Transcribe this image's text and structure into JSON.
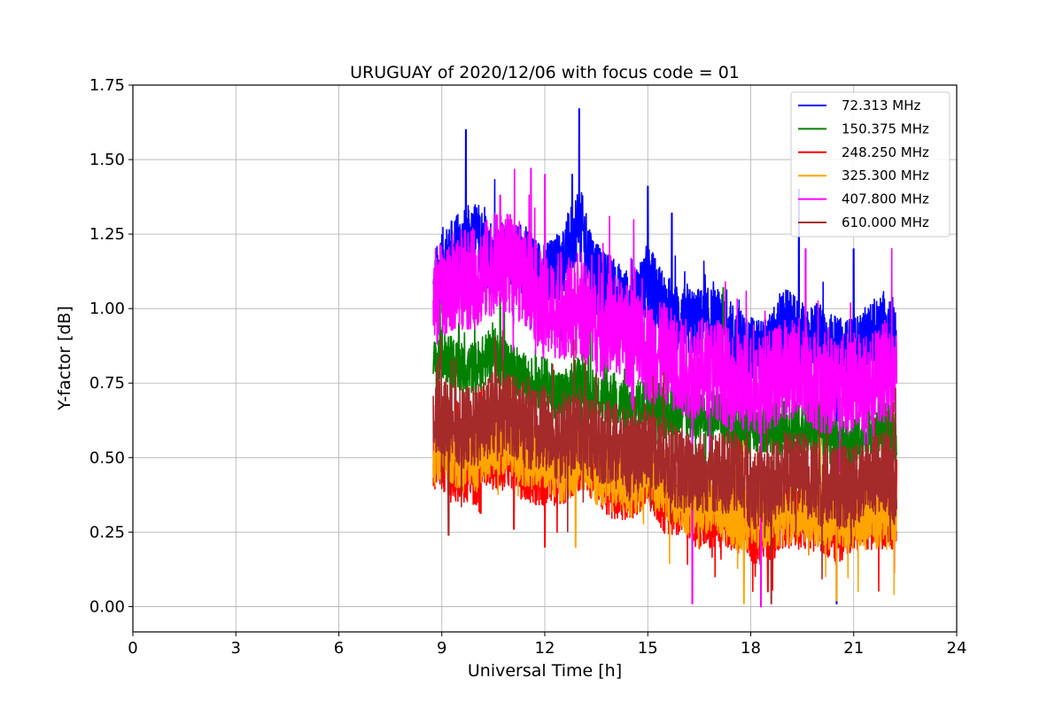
{
  "chart_data": {
    "type": "line",
    "title": "URUGUAY of 2020/12/06 with focus code = 01",
    "xlabel": "Universal Time [h]",
    "ylabel": "Y-factor [dB]",
    "xlim": [
      0,
      24
    ],
    "ylim": [
      -0.085,
      1.75
    ],
    "xticks": [
      0,
      3,
      6,
      9,
      12,
      15,
      18,
      21,
      24
    ],
    "yticks": [
      0.0,
      0.25,
      0.5,
      0.75,
      1.0,
      1.25,
      1.5,
      1.75
    ],
    "ytick_labels": [
      "0.00",
      "0.25",
      "0.50",
      "0.75",
      "1.00",
      "1.25",
      "1.50",
      "1.75"
    ],
    "grid": true,
    "legend_position": "top-right",
    "x_range": [
      8.75,
      22.25
    ],
    "series": [
      {
        "name": " 72.313 MHz",
        "color": "#0000ff",
        "x": [
          8.75,
          9.0,
          9.5,
          10.0,
          10.5,
          11.0,
          11.5,
          12.0,
          12.5,
          13.0,
          13.5,
          14.0,
          14.5,
          15.0,
          15.5,
          16.0,
          16.5,
          17.0,
          17.5,
          18.0,
          18.5,
          19.0,
          19.5,
          20.0,
          20.5,
          21.0,
          21.5,
          22.0,
          22.25
        ],
        "values": [
          1.05,
          1.15,
          1.2,
          1.25,
          1.15,
          1.2,
          1.15,
          1.1,
          1.15,
          1.3,
          1.1,
          1.05,
          1.0,
          1.1,
          1.0,
          0.95,
          0.95,
          0.95,
          0.9,
          0.85,
          0.85,
          0.95,
          0.9,
          0.9,
          0.85,
          0.85,
          0.9,
          0.95,
          0.9
        ],
        "peaks": [
          [
            9.7,
            1.6
          ],
          [
            13.0,
            1.67
          ],
          [
            12.8,
            1.45
          ],
          [
            15.0,
            1.41
          ],
          [
            15.7,
            1.32
          ],
          [
            19.4,
            1.4
          ],
          [
            21.0,
            1.2
          ],
          [
            20.5,
            0.01
          ]
        ]
      },
      {
        "name": "150.375 MHz",
        "color": "#008000",
        "x": [
          8.75,
          9.0,
          9.5,
          10.0,
          10.5,
          11.0,
          11.5,
          12.0,
          12.5,
          13.0,
          13.5,
          14.0,
          14.5,
          15.0,
          15.5,
          16.0,
          16.5,
          17.0,
          17.5,
          18.0,
          18.5,
          19.0,
          19.5,
          20.0,
          20.5,
          21.0,
          21.5,
          22.0,
          22.25
        ],
        "values": [
          0.8,
          0.85,
          0.8,
          0.8,
          0.85,
          0.8,
          0.75,
          0.75,
          0.7,
          0.75,
          0.7,
          0.7,
          0.65,
          0.7,
          0.65,
          0.65,
          0.65,
          0.65,
          0.6,
          0.6,
          0.6,
          0.6,
          0.6,
          0.6,
          0.55,
          0.55,
          0.6,
          0.6,
          0.55
        ],
        "peaks": [
          [
            10.7,
            1.05
          ],
          [
            17.2,
            1.07
          ],
          [
            9.5,
            0.95
          ]
        ]
      },
      {
        "name": "248.250 MHz",
        "color": "#ff0000",
        "x": [
          8.75,
          9.0,
          9.5,
          10.0,
          10.5,
          11.0,
          11.5,
          12.0,
          12.5,
          13.0,
          13.5,
          14.0,
          14.5,
          15.0,
          15.5,
          16.0,
          16.5,
          17.0,
          17.5,
          18.0,
          18.5,
          19.0,
          19.5,
          20.0,
          20.5,
          21.0,
          21.5,
          22.0,
          22.25
        ],
        "values": [
          0.5,
          0.5,
          0.45,
          0.45,
          0.5,
          0.5,
          0.45,
          0.45,
          0.45,
          0.5,
          0.45,
          0.4,
          0.4,
          0.45,
          0.35,
          0.35,
          0.3,
          0.3,
          0.3,
          0.25,
          0.25,
          0.3,
          0.3,
          0.3,
          0.25,
          0.3,
          0.3,
          0.3,
          0.3
        ],
        "peaks": [
          [
            9.2,
            0.24
          ],
          [
            11.1,
            0.26
          ],
          [
            12.0,
            0.2
          ],
          [
            18.5,
            0.05
          ]
        ]
      },
      {
        "name": "325.300 MHz",
        "color": "#ffa500",
        "x": [
          8.75,
          9.0,
          9.5,
          10.0,
          10.5,
          11.0,
          11.5,
          12.0,
          12.5,
          13.0,
          13.5,
          14.0,
          14.5,
          15.0,
          15.5,
          16.0,
          16.5,
          17.0,
          17.5,
          18.0,
          18.5,
          19.0,
          19.5,
          20.0,
          20.5,
          21.0,
          21.5,
          22.0,
          22.25
        ],
        "values": [
          0.5,
          0.55,
          0.5,
          0.5,
          0.55,
          0.55,
          0.5,
          0.5,
          0.45,
          0.5,
          0.45,
          0.45,
          0.4,
          0.45,
          0.4,
          0.35,
          0.35,
          0.35,
          0.3,
          0.3,
          0.3,
          0.3,
          0.35,
          0.3,
          0.3,
          0.3,
          0.3,
          0.3,
          0.3
        ],
        "peaks": [
          [
            12.9,
            0.2
          ],
          [
            17.8,
            0.01
          ],
          [
            20.5,
            0.02
          ]
        ]
      },
      {
        "name": "407.800 MHz",
        "color": "#ff00ff",
        "x": [
          8.75,
          9.0,
          9.5,
          10.0,
          10.5,
          11.0,
          11.5,
          12.0,
          12.5,
          13.0,
          13.5,
          14.0,
          14.5,
          15.0,
          15.5,
          16.0,
          16.5,
          17.0,
          17.5,
          18.0,
          18.5,
          19.0,
          19.5,
          20.0,
          20.5,
          21.0,
          21.5,
          22.0,
          22.25
        ],
        "values": [
          1.05,
          1.05,
          1.1,
          1.1,
          1.15,
          1.15,
          1.1,
          1.0,
          1.0,
          1.0,
          0.95,
          0.95,
          0.9,
          0.85,
          0.85,
          0.8,
          0.8,
          0.8,
          0.75,
          0.75,
          0.75,
          0.8,
          0.8,
          0.75,
          0.75,
          0.75,
          0.75,
          0.8,
          0.75
        ],
        "peaks": [
          [
            11.6,
            1.47
          ],
          [
            12.0,
            1.45
          ],
          [
            10.7,
            1.38
          ],
          [
            16.3,
            0.01
          ],
          [
            18.3,
            0.0
          ],
          [
            19.6,
            1.2
          ]
        ]
      },
      {
        "name": "610.000 MHz",
        "color": "#a52a2a",
        "x": [
          8.75,
          9.0,
          9.5,
          10.0,
          10.5,
          11.0,
          11.5,
          12.0,
          12.5,
          13.0,
          13.5,
          14.0,
          14.5,
          15.0,
          15.5,
          16.0,
          16.5,
          17.0,
          17.5,
          18.0,
          18.5,
          19.0,
          19.5,
          20.0,
          20.5,
          21.0,
          21.5,
          22.0,
          22.25
        ],
        "values": [
          0.6,
          0.65,
          0.6,
          0.6,
          0.65,
          0.65,
          0.6,
          0.6,
          0.55,
          0.6,
          0.55,
          0.55,
          0.5,
          0.55,
          0.5,
          0.45,
          0.45,
          0.45,
          0.45,
          0.4,
          0.4,
          0.45,
          0.45,
          0.4,
          0.4,
          0.4,
          0.45,
          0.45,
          0.4
        ],
        "peaks": [
          [
            9.2,
            0.24
          ],
          [
            13.5,
            0.78
          ],
          [
            18.6,
            0.01
          ]
        ]
      }
    ]
  }
}
